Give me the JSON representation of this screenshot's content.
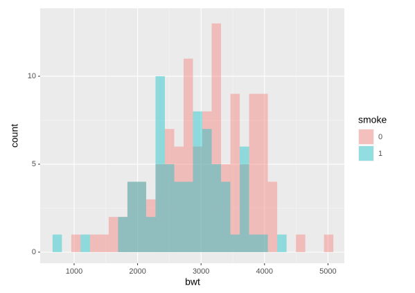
{
  "chart_data": {
    "type": "histogram",
    "x_label": "bwt",
    "y_label": "count",
    "legend_title": "smoke",
    "bins": [
      660,
      807.5,
      955,
      1102.5,
      1250,
      1397.5,
      1545,
      1692.5,
      1840,
      1987.5,
      2135,
      2282.5,
      2430,
      2577.5,
      2725,
      2872.5,
      3020,
      3167.5,
      3315,
      3462.5,
      3610,
      3757.5,
      3905,
      4052.5,
      4200,
      4347.5,
      4495,
      4642.5,
      4790,
      4937.5,
      5085
    ],
    "series": [
      {
        "name": "0",
        "color": "#F8766D",
        "values": [
          0,
          0,
          1,
          0,
          1,
          1,
          2,
          2,
          4,
          4,
          3,
          5,
          7,
          6,
          11,
          6,
          8,
          13,
          5,
          9,
          5,
          9,
          9,
          4,
          0,
          0,
          1,
          0,
          0,
          1
        ]
      },
      {
        "name": "1",
        "color": "#00BFC4",
        "values": [
          1,
          0,
          0,
          1,
          0,
          0,
          0,
          2,
          4,
          4,
          2,
          10,
          5,
          4,
          4,
          8,
          7,
          5,
          4,
          1,
          6,
          1,
          1,
          0,
          1,
          0,
          0,
          0,
          0,
          0
        ]
      }
    ],
    "xlim": [
      465,
      5258
    ],
    "xticks": [
      1000,
      2000,
      3000,
      4000,
      5000
    ],
    "ylim": [
      -0.63,
      13.86
    ],
    "yticks": [
      0,
      5,
      10
    ],
    "grid": true,
    "legend": "right",
    "opacity": 0.4
  }
}
